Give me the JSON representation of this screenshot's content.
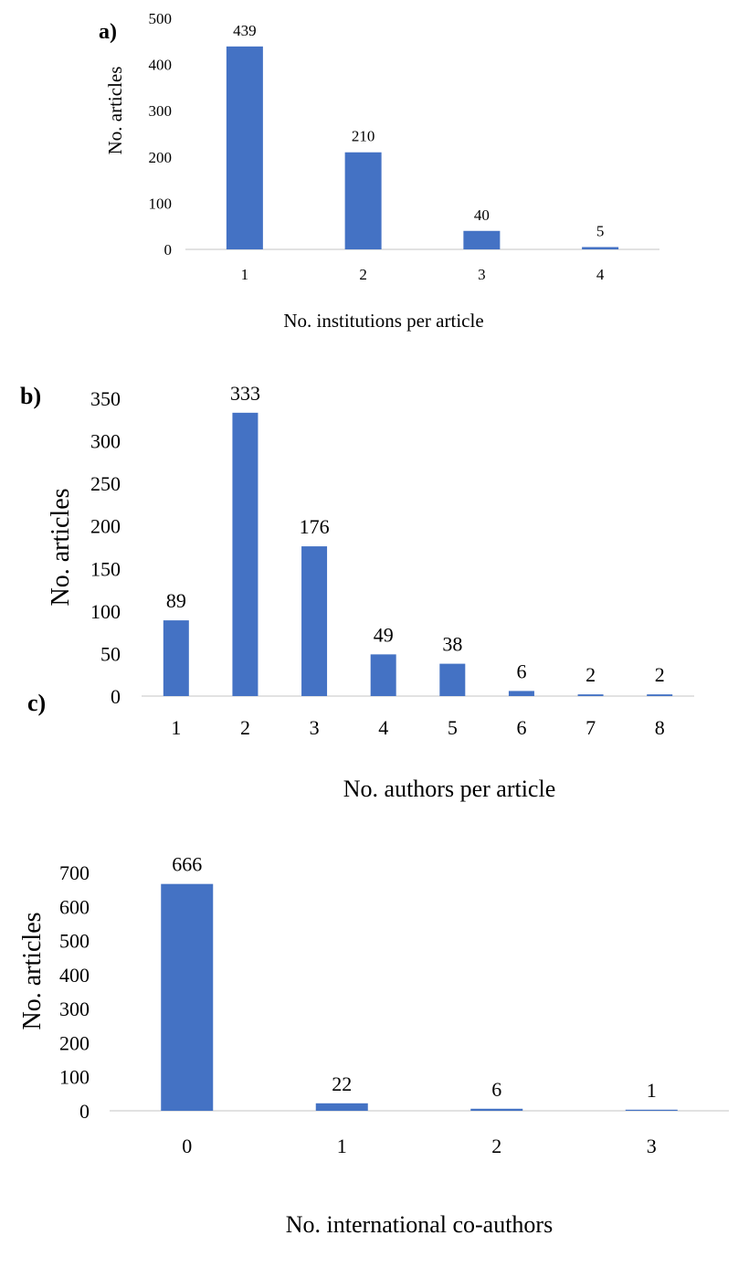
{
  "panels": [
    {
      "label": "a)"
    },
    {
      "label": "b)"
    },
    {
      "label": "c)"
    }
  ],
  "chart_data": [
    {
      "type": "bar",
      "categories": [
        "1",
        "2",
        "3",
        "4"
      ],
      "values": [
        439,
        210,
        40,
        5
      ],
      "data_labels": [
        "439",
        "210",
        "40",
        "5"
      ],
      "title": "",
      "xlabel": "No. institutions per article",
      "ylabel": "No. articles",
      "ylim": [
        0,
        500
      ],
      "yticks": [
        "0",
        "100",
        "200",
        "300",
        "400",
        "500"
      ],
      "bar_color": "#4472C4",
      "grid": false
    },
    {
      "type": "bar",
      "categories": [
        "1",
        "2",
        "3",
        "4",
        "5",
        "6",
        "7",
        "8"
      ],
      "values": [
        89,
        333,
        176,
        49,
        38,
        6,
        2,
        2
      ],
      "data_labels": [
        "89",
        "333",
        "176",
        "49",
        "38",
        "6",
        "2",
        "2"
      ],
      "title": "",
      "xlabel": "No. authors per article",
      "ylabel": "No. articles",
      "ylim": [
        0,
        350
      ],
      "yticks": [
        "0",
        "50",
        "100",
        "150",
        "200",
        "250",
        "300",
        "350"
      ],
      "bar_color": "#4472C4",
      "grid": false
    },
    {
      "type": "bar",
      "categories": [
        "0",
        "1",
        "2",
        "3"
      ],
      "values": [
        666,
        22,
        6,
        1
      ],
      "data_labels": [
        "666",
        "22",
        "6",
        "1"
      ],
      "title": "",
      "xlabel": "No. international co-authors",
      "ylabel": "No. articles",
      "ylim": [
        0,
        700
      ],
      "yticks": [
        "0",
        "100",
        "200",
        "300",
        "400",
        "500",
        "600",
        "700"
      ],
      "bar_color": "#4472C4",
      "grid": false
    }
  ]
}
